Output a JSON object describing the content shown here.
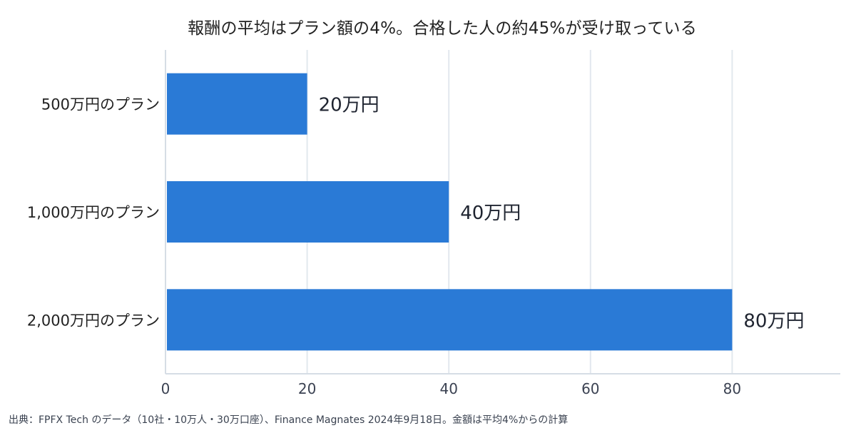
{
  "chart_data": {
    "type": "bar",
    "orientation": "horizontal",
    "title": "報酬の平均はプラン額の4%。合格した人の約45%が受け取っている",
    "categories": [
      "500万円のプラン",
      "1,000万円のプラン",
      "2,000万円のプラン"
    ],
    "values": [
      20,
      40,
      80
    ],
    "data_labels": [
      "20万円",
      "40万円",
      "80万円"
    ],
    "x_ticks": [
      0,
      20,
      40,
      60,
      80
    ],
    "xlim": [
      0,
      95
    ],
    "grid": true,
    "bar_color": "#2a7ad6",
    "grid_color": "#e2e8ee",
    "axis_color": "#d6dde5"
  },
  "source_note": "出典：FPFX Tech のデータ（10社・10万人・30万口座）、Finance Magnates 2024年9月18日。金額は平均4%からの計算"
}
